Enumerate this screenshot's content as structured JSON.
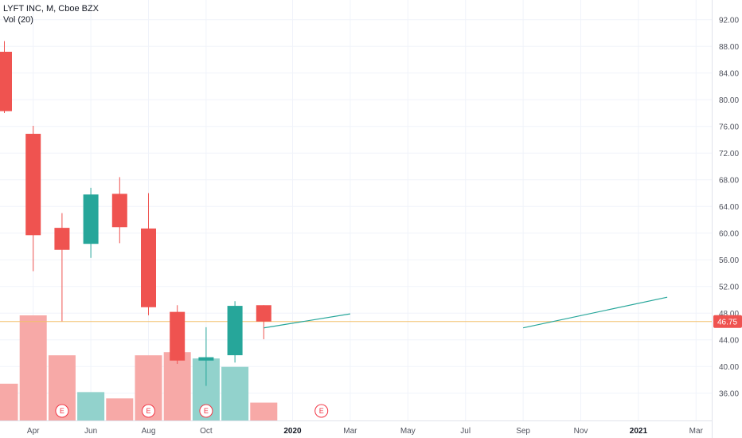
{
  "header": {
    "symbol_line": "LYFT INC, M, Cboe BZX",
    "volume_line": "Vol (20)"
  },
  "colors": {
    "up": "#26a69a",
    "down": "#ef5350",
    "up_vol": "#92d2cc",
    "down_vol": "#f7a9a7",
    "grid": "#f0f3fa",
    "axis_text": "#50535e",
    "current_line": "#f4c06b",
    "price_tag": "#ef5350",
    "earnings": "#f23645",
    "projection": "#26a69a"
  },
  "chart_data": {
    "type": "candlestick",
    "y_axis": {
      "range": [
        32,
        94
      ],
      "ticks": [
        "92.00",
        "88.00",
        "84.00",
        "80.00",
        "76.00",
        "72.00",
        "68.00",
        "64.00",
        "60.00",
        "56.00",
        "52.00",
        "48.00",
        "44.00",
        "40.00",
        "36.00"
      ]
    },
    "x_axis": {
      "ticks": [
        {
          "label": "Apr",
          "date": "2019-04",
          "bold": false
        },
        {
          "label": "Jun",
          "date": "2019-06",
          "bold": false
        },
        {
          "label": "Aug",
          "date": "2019-08",
          "bold": false
        },
        {
          "label": "Oct",
          "date": "2019-10",
          "bold": false
        },
        {
          "label": "2020",
          "date": "2020-01",
          "bold": true
        },
        {
          "label": "Mar",
          "date": "2020-03",
          "bold": false
        },
        {
          "label": "May",
          "date": "2020-05",
          "bold": false
        },
        {
          "label": "Jul",
          "date": "2020-07",
          "bold": false
        },
        {
          "label": "Sep",
          "date": "2020-09",
          "bold": false
        },
        {
          "label": "Nov",
          "date": "2020-11",
          "bold": false
        },
        {
          "label": "2021",
          "date": "2021-01",
          "bold": true
        },
        {
          "label": "Mar",
          "date": "2021-03",
          "bold": false
        }
      ]
    },
    "candles": [
      {
        "date": "2019-03",
        "open": 87.2,
        "high": 88.8,
        "low": 78.0,
        "close": 78.3
      },
      {
        "date": "2019-04",
        "open": 74.9,
        "high": 76.1,
        "low": 54.3,
        "close": 59.7
      },
      {
        "date": "2019-05",
        "open": 60.8,
        "high": 63.0,
        "low": 46.8,
        "close": 57.5
      },
      {
        "date": "2019-06",
        "open": 58.4,
        "high": 66.8,
        "low": 56.3,
        "close": 65.8
      },
      {
        "date": "2019-07",
        "open": 65.9,
        "high": 68.4,
        "low": 58.5,
        "close": 60.9
      },
      {
        "date": "2019-08",
        "open": 60.7,
        "high": 66.0,
        "low": 47.7,
        "close": 48.9
      },
      {
        "date": "2019-09",
        "open": 48.2,
        "high": 49.2,
        "low": 40.4,
        "close": 40.9
      },
      {
        "date": "2019-10",
        "open": 40.9,
        "high": 45.9,
        "low": 37.1,
        "close": 41.4
      },
      {
        "date": "2019-11",
        "open": 41.7,
        "high": 49.8,
        "low": 40.6,
        "close": 49.1
      },
      {
        "date": "2019-12",
        "open": 49.2,
        "high": 49.2,
        "low": 44.1,
        "close": 46.75
      }
    ],
    "volume": [
      {
        "date": "2019-03",
        "level": 0.35,
        "up": false
      },
      {
        "date": "2019-04",
        "level": 1.0,
        "up": false
      },
      {
        "date": "2019-05",
        "level": 0.62,
        "up": false
      },
      {
        "date": "2019-06",
        "level": 0.27,
        "up": true
      },
      {
        "date": "2019-07",
        "level": 0.21,
        "up": false
      },
      {
        "date": "2019-08",
        "level": 0.62,
        "up": false
      },
      {
        "date": "2019-09",
        "level": 0.65,
        "up": false
      },
      {
        "date": "2019-10",
        "level": 0.59,
        "up": true
      },
      {
        "date": "2019-11",
        "level": 0.51,
        "up": true
      },
      {
        "date": "2019-12",
        "level": 0.17,
        "up": false
      }
    ],
    "earnings": [
      {
        "date": "2019-05",
        "label": "E"
      },
      {
        "date": "2019-08",
        "label": "E"
      },
      {
        "date": "2019-10",
        "label": "E"
      },
      {
        "date": "2020-02",
        "label": "E"
      }
    ],
    "current_price": {
      "value": 46.75,
      "label": "46.75"
    },
    "projection_lines": [
      {
        "start": {
          "date": "2019-12",
          "price": 45.8
        },
        "end": {
          "date": "2020-03",
          "price": 47.9
        }
      },
      {
        "start": {
          "date": "2020-09",
          "price": 45.8
        },
        "end": {
          "date": "2021-02",
          "price": 50.4
        }
      }
    ]
  }
}
